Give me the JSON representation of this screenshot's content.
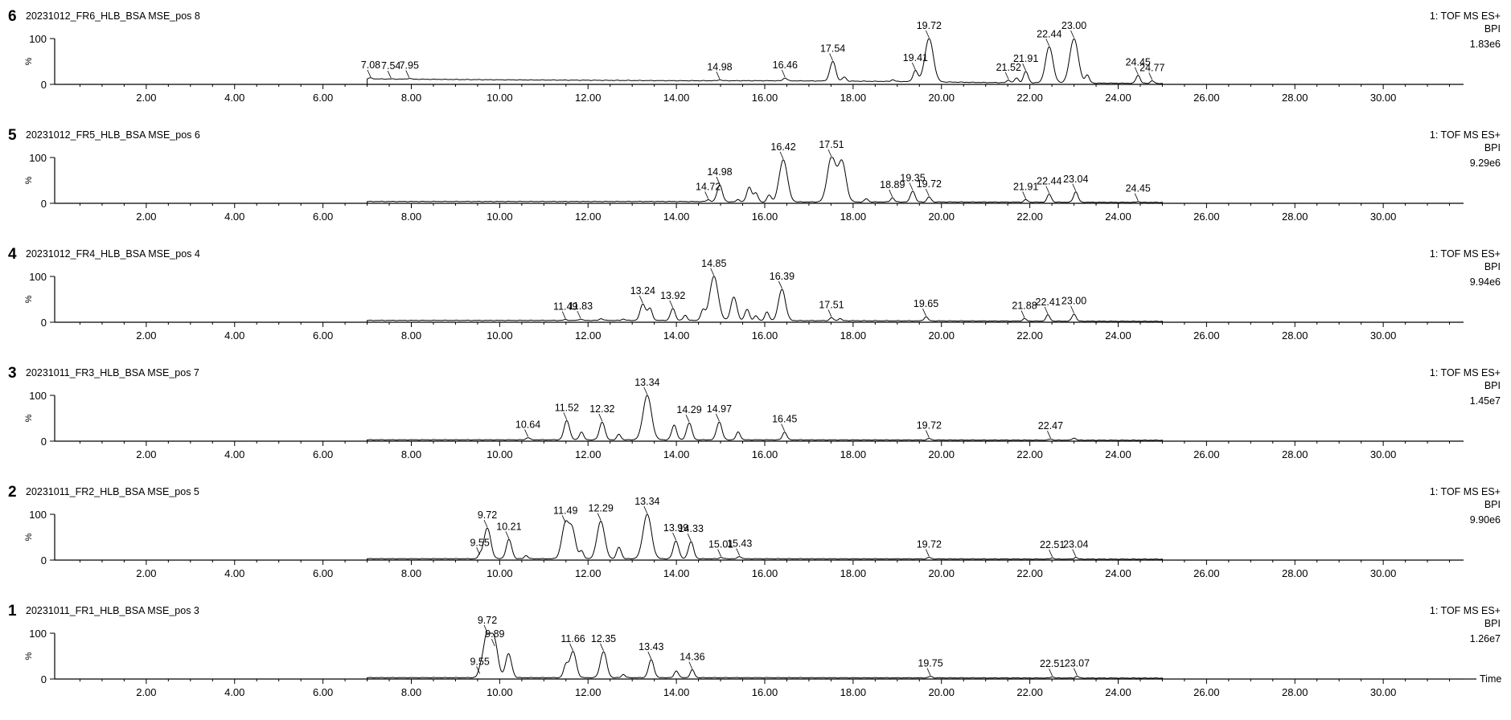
{
  "chart_data": {
    "type": "line",
    "xlim": [
      0,
      32
    ],
    "ylim": [
      0,
      100
    ],
    "x_ticks": [
      2,
      4,
      6,
      8,
      10,
      12,
      14,
      16,
      18,
      20,
      22,
      24,
      26,
      28,
      30
    ],
    "x_tick_labels": [
      "2.00",
      "4.00",
      "6.00",
      "8.00",
      "10.00",
      "12.00",
      "14.00",
      "16.00",
      "18.00",
      "20.00",
      "22.00",
      "24.00",
      "26.00",
      "28.00",
      "30.00"
    ],
    "y_tick_labels": [
      "100",
      "0"
    ],
    "y_axis_symbol": "%",
    "xlabel": "Time",
    "grid": false,
    "panels": [
      {
        "index": "6",
        "title": "20231012_FR6_HLB_BSA MSE_pos 8",
        "mode": "1: TOF MS ES+",
        "trace": "BPI",
        "intensity": "1.83e6",
        "x_start": 7.0,
        "x_end": 25.0,
        "baseline": [
          [
            7.0,
            12
          ],
          [
            8.5,
            11
          ],
          [
            10,
            10
          ],
          [
            12,
            9
          ],
          [
            14,
            8
          ],
          [
            16,
            8
          ],
          [
            18,
            7
          ],
          [
            19.5,
            6
          ],
          [
            21,
            4
          ],
          [
            23,
            3
          ],
          [
            25,
            2
          ]
        ],
        "peaks": [
          {
            "rt": 7.08,
            "height": 14,
            "label": "7.08"
          },
          {
            "rt": 7.54,
            "height": 12,
            "label": "7.54"
          },
          {
            "rt": 7.95,
            "height": 13,
            "label": "7.95"
          },
          {
            "rt": 14.98,
            "height": 10,
            "label": "14.98"
          },
          {
            "rt": 16.46,
            "height": 14,
            "label": "16.46"
          },
          {
            "rt": 17.54,
            "height": 50,
            "label": "17.54"
          },
          {
            "rt": 17.8,
            "height": 16,
            "label": ""
          },
          {
            "rt": 18.9,
            "height": 10,
            "label": ""
          },
          {
            "rt": 19.41,
            "height": 30,
            "label": "19.41"
          },
          {
            "rt": 19.72,
            "height": 100,
            "label": "19.72"
          },
          {
            "rt": 21.52,
            "height": 9,
            "label": "21.52"
          },
          {
            "rt": 21.7,
            "height": 14,
            "label": ""
          },
          {
            "rt": 21.91,
            "height": 28,
            "label": "21.91"
          },
          {
            "rt": 22.44,
            "height": 82,
            "label": "22.44"
          },
          {
            "rt": 23.0,
            "height": 100,
            "label": "23.00"
          },
          {
            "rt": 23.3,
            "height": 20,
            "label": ""
          },
          {
            "rt": 24.45,
            "height": 20,
            "label": "24.45"
          },
          {
            "rt": 24.77,
            "height": 8,
            "label": "24.77"
          }
        ]
      },
      {
        "index": "5",
        "title": "20231012_FR5_HLB_BSA MSE_pos 6",
        "mode": "1: TOF MS ES+",
        "trace": "BPI",
        "intensity": "9.29e6",
        "x_start": 7.0,
        "x_end": 25.0,
        "baseline": [
          [
            7.0,
            4
          ],
          [
            14,
            4
          ],
          [
            16,
            3
          ],
          [
            20,
            3
          ],
          [
            25,
            2
          ]
        ],
        "peaks": [
          {
            "rt": 14.72,
            "height": 8,
            "label": "14.72"
          },
          {
            "rt": 14.98,
            "height": 40,
            "label": "14.98"
          },
          {
            "rt": 15.4,
            "height": 8,
            "label": ""
          },
          {
            "rt": 15.65,
            "height": 35,
            "label": ""
          },
          {
            "rt": 15.8,
            "height": 22,
            "label": ""
          },
          {
            "rt": 16.1,
            "height": 18,
            "label": ""
          },
          {
            "rt": 16.42,
            "height": 95,
            "label": "16.42"
          },
          {
            "rt": 17.51,
            "height": 100,
            "label": "17.51"
          },
          {
            "rt": 17.75,
            "height": 90,
            "label": ""
          },
          {
            "rt": 18.3,
            "height": 10,
            "label": ""
          },
          {
            "rt": 18.89,
            "height": 12,
            "label": "18.89"
          },
          {
            "rt": 19.35,
            "height": 27,
            "label": "19.35"
          },
          {
            "rt": 19.72,
            "height": 14,
            "label": "19.72"
          },
          {
            "rt": 21.91,
            "height": 8,
            "label": "21.91"
          },
          {
            "rt": 22.44,
            "height": 20,
            "label": "22.44"
          },
          {
            "rt": 23.04,
            "height": 25,
            "label": "23.04"
          },
          {
            "rt": 24.45,
            "height": 4,
            "label": "24.45"
          }
        ]
      },
      {
        "index": "4",
        "title": "20231012_FR4_HLB_BSA MSE_pos 4",
        "mode": "1: TOF MS ES+",
        "trace": "BPI",
        "intensity": "9.94e6",
        "x_start": 7.0,
        "x_end": 25.0,
        "baseline": [
          [
            7.0,
            4
          ],
          [
            14,
            4
          ],
          [
            20,
            3
          ],
          [
            25,
            2
          ]
        ],
        "peaks": [
          {
            "rt": 11.49,
            "height": 6,
            "label": "11.49"
          },
          {
            "rt": 11.83,
            "height": 7,
            "label": "11.83"
          },
          {
            "rt": 12.3,
            "height": 8,
            "label": ""
          },
          {
            "rt": 12.8,
            "height": 7,
            "label": ""
          },
          {
            "rt": 13.24,
            "height": 40,
            "label": "13.24"
          },
          {
            "rt": 13.4,
            "height": 30,
            "label": ""
          },
          {
            "rt": 13.92,
            "height": 30,
            "label": "13.92"
          },
          {
            "rt": 14.2,
            "height": 15,
            "label": ""
          },
          {
            "rt": 14.6,
            "height": 25,
            "label": ""
          },
          {
            "rt": 14.85,
            "height": 100,
            "label": "14.85"
          },
          {
            "rt": 15.3,
            "height": 55,
            "label": ""
          },
          {
            "rt": 15.6,
            "height": 28,
            "label": ""
          },
          {
            "rt": 15.8,
            "height": 14,
            "label": ""
          },
          {
            "rt": 16.05,
            "height": 22,
            "label": ""
          },
          {
            "rt": 16.39,
            "height": 72,
            "label": "16.39"
          },
          {
            "rt": 17.51,
            "height": 10,
            "label": "17.51"
          },
          {
            "rt": 17.7,
            "height": 8,
            "label": ""
          },
          {
            "rt": 19.65,
            "height": 12,
            "label": "19.65"
          },
          {
            "rt": 21.88,
            "height": 8,
            "label": "21.88"
          },
          {
            "rt": 22.41,
            "height": 16,
            "label": "22.41"
          },
          {
            "rt": 23.0,
            "height": 18,
            "label": "23.00"
          }
        ]
      },
      {
        "index": "3",
        "title": "20231011_FR3_HLB_BSA MSE_pos 7",
        "mode": "1: TOF MS ES+",
        "trace": "BPI",
        "intensity": "1.45e7",
        "x_start": 7.0,
        "x_end": 25.0,
        "baseline": [
          [
            7.0,
            3
          ],
          [
            10,
            3
          ],
          [
            16,
            3
          ],
          [
            25,
            2
          ]
        ],
        "peaks": [
          {
            "rt": 10.64,
            "height": 8,
            "label": "10.64"
          },
          {
            "rt": 11.52,
            "height": 45,
            "label": "11.52"
          },
          {
            "rt": 11.85,
            "height": 20,
            "label": ""
          },
          {
            "rt": 12.32,
            "height": 42,
            "label": "12.32"
          },
          {
            "rt": 12.7,
            "height": 15,
            "label": ""
          },
          {
            "rt": 13.34,
            "height": 100,
            "label": "13.34"
          },
          {
            "rt": 13.95,
            "height": 35,
            "label": ""
          },
          {
            "rt": 14.29,
            "height": 40,
            "label": "14.29"
          },
          {
            "rt": 14.97,
            "height": 42,
            "label": "14.97"
          },
          {
            "rt": 15.4,
            "height": 20,
            "label": ""
          },
          {
            "rt": 16.45,
            "height": 20,
            "label": "16.45"
          },
          {
            "rt": 19.72,
            "height": 6,
            "label": "19.72"
          },
          {
            "rt": 22.47,
            "height": 5,
            "label": "22.47"
          },
          {
            "rt": 23.0,
            "height": 7,
            "label": ""
          }
        ]
      },
      {
        "index": "2",
        "title": "20231011_FR2_HLB_BSA MSE_pos 5",
        "mode": "1: TOF MS ES+",
        "trace": "BPI",
        "intensity": "9.90e6",
        "x_start": 7.0,
        "x_end": 25.0,
        "baseline": [
          [
            7.0,
            3
          ],
          [
            9,
            3
          ],
          [
            16,
            3
          ],
          [
            25,
            2
          ]
        ],
        "peaks": [
          {
            "rt": 9.55,
            "height": 10,
            "label": "9.55"
          },
          {
            "rt": 9.72,
            "height": 70,
            "label": "9.72"
          },
          {
            "rt": 10.21,
            "height": 45,
            "label": "10.21"
          },
          {
            "rt": 10.6,
            "height": 10,
            "label": ""
          },
          {
            "rt": 11.49,
            "height": 80,
            "label": "11.49"
          },
          {
            "rt": 11.65,
            "height": 60,
            "label": ""
          },
          {
            "rt": 11.85,
            "height": 20,
            "label": ""
          },
          {
            "rt": 12.29,
            "height": 85,
            "label": "12.29"
          },
          {
            "rt": 12.7,
            "height": 28,
            "label": ""
          },
          {
            "rt": 13.34,
            "height": 100,
            "label": "13.34"
          },
          {
            "rt": 13.99,
            "height": 42,
            "label": "13.99"
          },
          {
            "rt": 14.33,
            "height": 40,
            "label": "14.33"
          },
          {
            "rt": 15.01,
            "height": 6,
            "label": "15.01"
          },
          {
            "rt": 15.43,
            "height": 8,
            "label": "15.43"
          },
          {
            "rt": 19.72,
            "height": 6,
            "label": "19.72"
          },
          {
            "rt": 22.51,
            "height": 5,
            "label": "22.51"
          },
          {
            "rt": 23.04,
            "height": 6,
            "label": "23.04"
          }
        ]
      },
      {
        "index": "1",
        "title": "20231011_FR1_HLB_BSA MSE_pos 3",
        "mode": "1: TOF MS ES+",
        "trace": "BPI",
        "intensity": "1.26e7",
        "x_start": 7.0,
        "x_end": 25.0,
        "baseline": [
          [
            7.0,
            3
          ],
          [
            9,
            3
          ],
          [
            16,
            3
          ],
          [
            25,
            2
          ]
        ],
        "peaks": [
          {
            "rt": 9.55,
            "height": 10,
            "label": "9.55"
          },
          {
            "rt": 9.72,
            "height": 100,
            "label": "9.72"
          },
          {
            "rt": 9.89,
            "height": 70,
            "label": "9.89"
          },
          {
            "rt": 10.2,
            "height": 55,
            "label": ""
          },
          {
            "rt": 11.5,
            "height": 30,
            "label": ""
          },
          {
            "rt": 11.66,
            "height": 60,
            "label": "11.66"
          },
          {
            "rt": 12.35,
            "height": 60,
            "label": "12.35"
          },
          {
            "rt": 12.8,
            "height": 10,
            "label": ""
          },
          {
            "rt": 13.43,
            "height": 42,
            "label": "13.43"
          },
          {
            "rt": 14.0,
            "height": 18,
            "label": ""
          },
          {
            "rt": 14.36,
            "height": 20,
            "label": "14.36"
          },
          {
            "rt": 19.75,
            "height": 6,
            "label": "19.75"
          },
          {
            "rt": 22.51,
            "height": 5,
            "label": "22.51"
          },
          {
            "rt": 23.07,
            "height": 6,
            "label": "23.07"
          }
        ]
      }
    ]
  }
}
